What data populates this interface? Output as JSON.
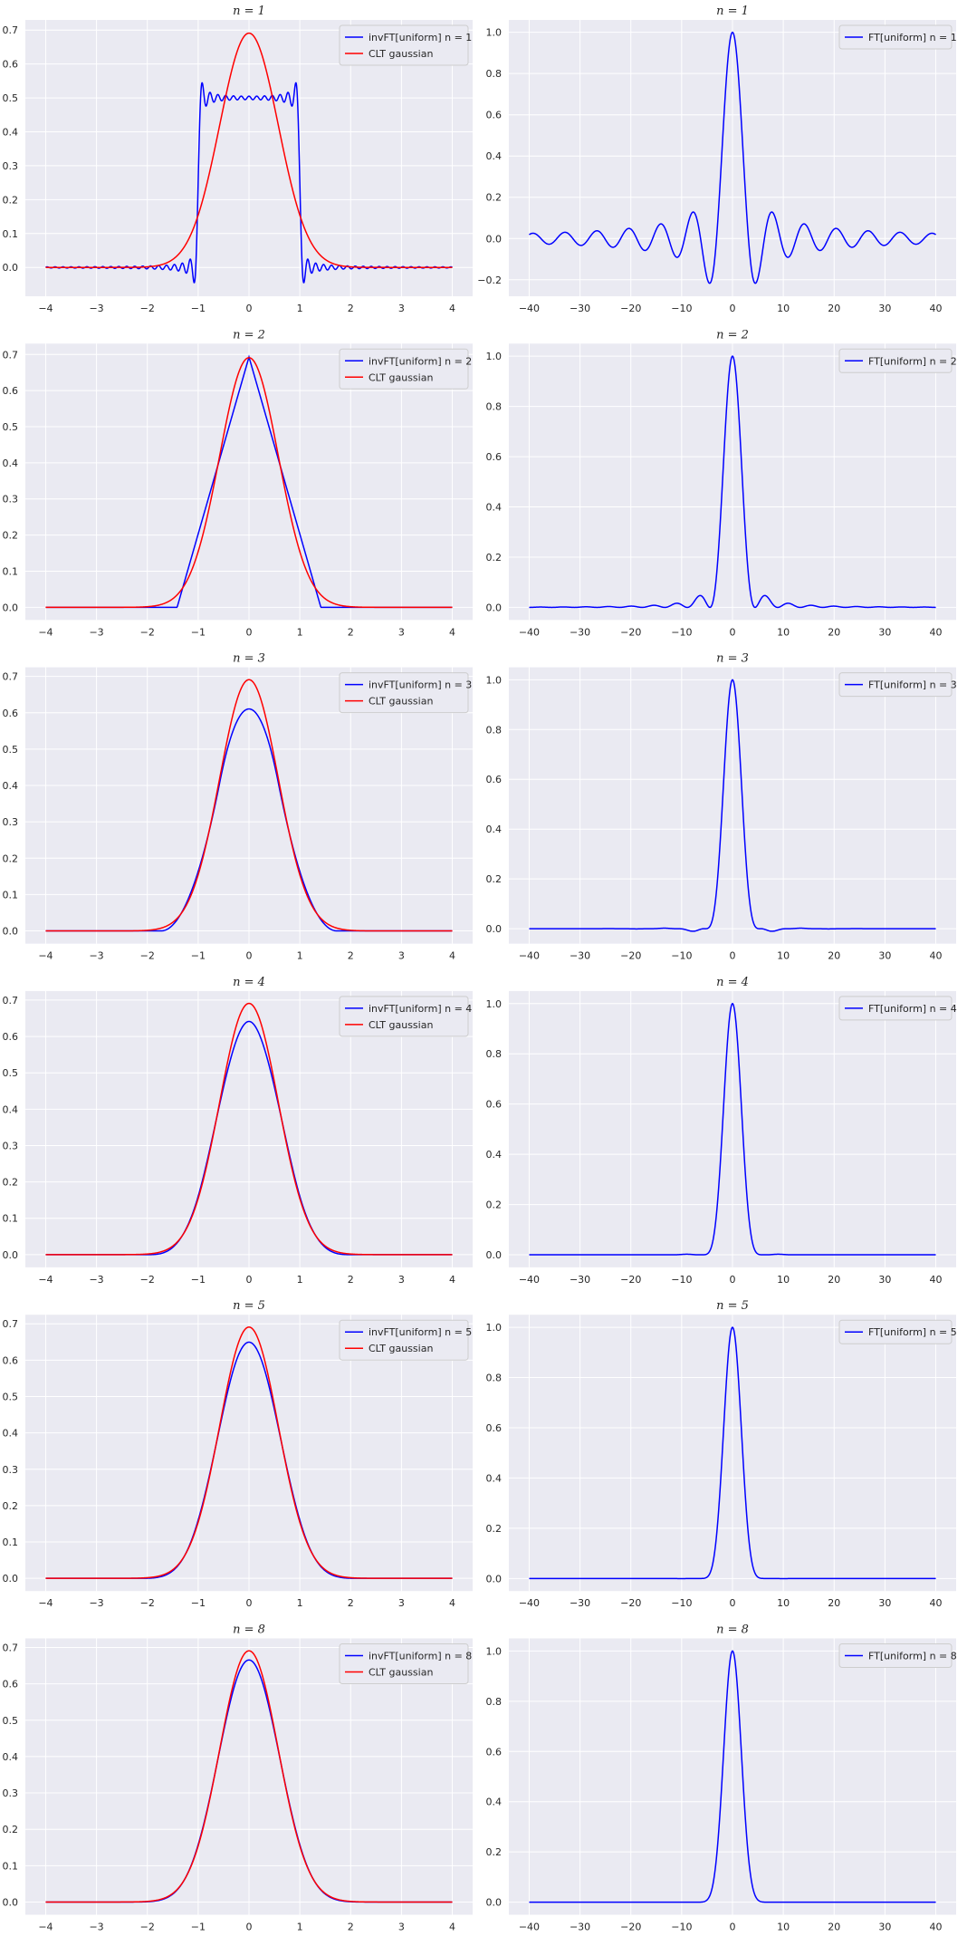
{
  "colors": {
    "background": "#eaeaf2",
    "grid": "#ffffff",
    "blue": "#0000ff",
    "red": "#ff0000"
  },
  "chart_data": [
    {
      "type": "line",
      "panel": "left",
      "n": 1,
      "title": "n = 1",
      "xlim": [
        -4.4,
        4.4
      ],
      "ylim": [
        -0.085,
        0.73
      ],
      "xticks": [
        -4,
        -3,
        -2,
        -1,
        0,
        1,
        2,
        3,
        4
      ],
      "yticks": [
        0.0,
        0.1,
        0.2,
        0.3,
        0.4,
        0.5,
        0.6,
        0.7
      ],
      "legend": "top-right",
      "grid": true,
      "series": [
        {
          "name": "invFT[uniform] n = 1",
          "color": "#0000ff",
          "x_range": [
            -4,
            4
          ]
        },
        {
          "name": "CLT gaussian",
          "color": "#ff0000",
          "x_range": [
            -4,
            4
          ]
        }
      ]
    },
    {
      "type": "line",
      "panel": "right",
      "n": 1,
      "title": "n = 1",
      "xlim": [
        -44,
        44
      ],
      "ylim": [
        -0.28,
        1.06
      ],
      "xticks": [
        -40,
        -30,
        -20,
        -10,
        0,
        10,
        20,
        30,
        40
      ],
      "yticks": [
        -0.2,
        0.0,
        0.2,
        0.4,
        0.6,
        0.8,
        1.0
      ],
      "legend": "top-right",
      "grid": true,
      "series": [
        {
          "name": "FT[uniform] n = 1",
          "color": "#0000ff",
          "x_range": [
            -40,
            40
          ]
        }
      ]
    },
    {
      "type": "line",
      "panel": "left",
      "n": 2,
      "title": "n = 2",
      "xlim": [
        -4.4,
        4.4
      ],
      "ylim": [
        -0.035,
        0.73
      ],
      "xticks": [
        -4,
        -3,
        -2,
        -1,
        0,
        1,
        2,
        3,
        4
      ],
      "yticks": [
        0.0,
        0.1,
        0.2,
        0.3,
        0.4,
        0.5,
        0.6,
        0.7
      ],
      "legend": "top-right",
      "grid": true,
      "series": [
        {
          "name": "invFT[uniform] n = 2",
          "color": "#0000ff",
          "x_range": [
            -4,
            4
          ]
        },
        {
          "name": "CLT gaussian",
          "color": "#ff0000",
          "x_range": [
            -4,
            4
          ]
        }
      ]
    },
    {
      "type": "line",
      "panel": "right",
      "n": 2,
      "title": "n = 2",
      "xlim": [
        -44,
        44
      ],
      "ylim": [
        -0.05,
        1.05
      ],
      "xticks": [
        -40,
        -30,
        -20,
        -10,
        0,
        10,
        20,
        30,
        40
      ],
      "yticks": [
        0.0,
        0.2,
        0.4,
        0.6,
        0.8,
        1.0
      ],
      "legend": "top-right",
      "grid": true,
      "series": [
        {
          "name": "FT[uniform] n = 2",
          "color": "#0000ff",
          "x_range": [
            -40,
            40
          ]
        }
      ]
    },
    {
      "type": "line",
      "panel": "left",
      "n": 3,
      "title": "n = 3",
      "xlim": [
        -4.4,
        4.4
      ],
      "ylim": [
        -0.035,
        0.725
      ],
      "xticks": [
        -4,
        -3,
        -2,
        -1,
        0,
        1,
        2,
        3,
        4
      ],
      "yticks": [
        0.0,
        0.1,
        0.2,
        0.3,
        0.4,
        0.5,
        0.6,
        0.7
      ],
      "legend": "top-right",
      "grid": true,
      "series": [
        {
          "name": "invFT[uniform] n = 3",
          "color": "#0000ff",
          "x_range": [
            -4,
            4
          ]
        },
        {
          "name": "CLT gaussian",
          "color": "#ff0000",
          "x_range": [
            -4,
            4
          ]
        }
      ]
    },
    {
      "type": "line",
      "panel": "right",
      "n": 3,
      "title": "n = 3",
      "xlim": [
        -44,
        44
      ],
      "ylim": [
        -0.06,
        1.05
      ],
      "xticks": [
        -40,
        -30,
        -20,
        -10,
        0,
        10,
        20,
        30,
        40
      ],
      "yticks": [
        0.0,
        0.2,
        0.4,
        0.6,
        0.8,
        1.0
      ],
      "legend": "top-right",
      "grid": true,
      "series": [
        {
          "name": "FT[uniform] n = 3",
          "color": "#0000ff",
          "x_range": [
            -40,
            40
          ]
        }
      ]
    },
    {
      "type": "line",
      "panel": "left",
      "n": 4,
      "title": "n = 4",
      "xlim": [
        -4.4,
        4.4
      ],
      "ylim": [
        -0.035,
        0.725
      ],
      "xticks": [
        -4,
        -3,
        -2,
        -1,
        0,
        1,
        2,
        3,
        4
      ],
      "yticks": [
        0.0,
        0.1,
        0.2,
        0.3,
        0.4,
        0.5,
        0.6,
        0.7
      ],
      "legend": "top-right",
      "grid": true,
      "series": [
        {
          "name": "invFT[uniform] n = 4",
          "color": "#0000ff",
          "x_range": [
            -4,
            4
          ]
        },
        {
          "name": "CLT gaussian",
          "color": "#ff0000",
          "x_range": [
            -4,
            4
          ]
        }
      ]
    },
    {
      "type": "line",
      "panel": "right",
      "n": 4,
      "title": "n = 4",
      "xlim": [
        -44,
        44
      ],
      "ylim": [
        -0.05,
        1.05
      ],
      "xticks": [
        -40,
        -30,
        -20,
        -10,
        0,
        10,
        20,
        30,
        40
      ],
      "yticks": [
        0.0,
        0.2,
        0.4,
        0.6,
        0.8,
        1.0
      ],
      "legend": "top-right",
      "grid": true,
      "series": [
        {
          "name": "FT[uniform] n = 4",
          "color": "#0000ff",
          "x_range": [
            -40,
            40
          ]
        }
      ]
    },
    {
      "type": "line",
      "panel": "left",
      "n": 5,
      "title": "n = 5",
      "xlim": [
        -4.4,
        4.4
      ],
      "ylim": [
        -0.035,
        0.725
      ],
      "xticks": [
        -4,
        -3,
        -2,
        -1,
        0,
        1,
        2,
        3,
        4
      ],
      "yticks": [
        0.0,
        0.1,
        0.2,
        0.3,
        0.4,
        0.5,
        0.6,
        0.7
      ],
      "legend": "top-right",
      "grid": true,
      "series": [
        {
          "name": "invFT[uniform] n = 5",
          "color": "#0000ff",
          "x_range": [
            -4,
            4
          ]
        },
        {
          "name": "CLT gaussian",
          "color": "#ff0000",
          "x_range": [
            -4,
            4
          ]
        }
      ]
    },
    {
      "type": "line",
      "panel": "right",
      "n": 5,
      "title": "n = 5",
      "xlim": [
        -44,
        44
      ],
      "ylim": [
        -0.05,
        1.05
      ],
      "xticks": [
        -40,
        -30,
        -20,
        -10,
        0,
        10,
        20,
        30,
        40
      ],
      "yticks": [
        0.0,
        0.2,
        0.4,
        0.6,
        0.8,
        1.0
      ],
      "legend": "top-right",
      "grid": true,
      "series": [
        {
          "name": "FT[uniform] n = 5",
          "color": "#0000ff",
          "x_range": [
            -40,
            40
          ]
        }
      ]
    },
    {
      "type": "line",
      "panel": "left",
      "n": 8,
      "title": "n = 8",
      "xlim": [
        -4.4,
        4.4
      ],
      "ylim": [
        -0.035,
        0.725
      ],
      "xticks": [
        -4,
        -3,
        -2,
        -1,
        0,
        1,
        2,
        3,
        4
      ],
      "yticks": [
        0.0,
        0.1,
        0.2,
        0.3,
        0.4,
        0.5,
        0.6,
        0.7
      ],
      "legend": "top-right",
      "grid": true,
      "series": [
        {
          "name": "invFT[uniform] n = 8",
          "color": "#0000ff",
          "x_range": [
            -4,
            4
          ]
        },
        {
          "name": "CLT gaussian",
          "color": "#ff0000",
          "x_range": [
            -4,
            4
          ]
        }
      ]
    },
    {
      "type": "line",
      "panel": "right",
      "n": 8,
      "title": "n = 8",
      "xlim": [
        -44,
        44
      ],
      "ylim": [
        -0.05,
        1.05
      ],
      "xticks": [
        -40,
        -30,
        -20,
        -10,
        0,
        10,
        20,
        30,
        40
      ],
      "yticks": [
        0.0,
        0.2,
        0.4,
        0.6,
        0.8,
        1.0
      ],
      "legend": "top-right",
      "grid": true,
      "series": [
        {
          "name": "FT[uniform] n = 8",
          "color": "#0000ff",
          "x_range": [
            -40,
            40
          ]
        }
      ]
    }
  ]
}
